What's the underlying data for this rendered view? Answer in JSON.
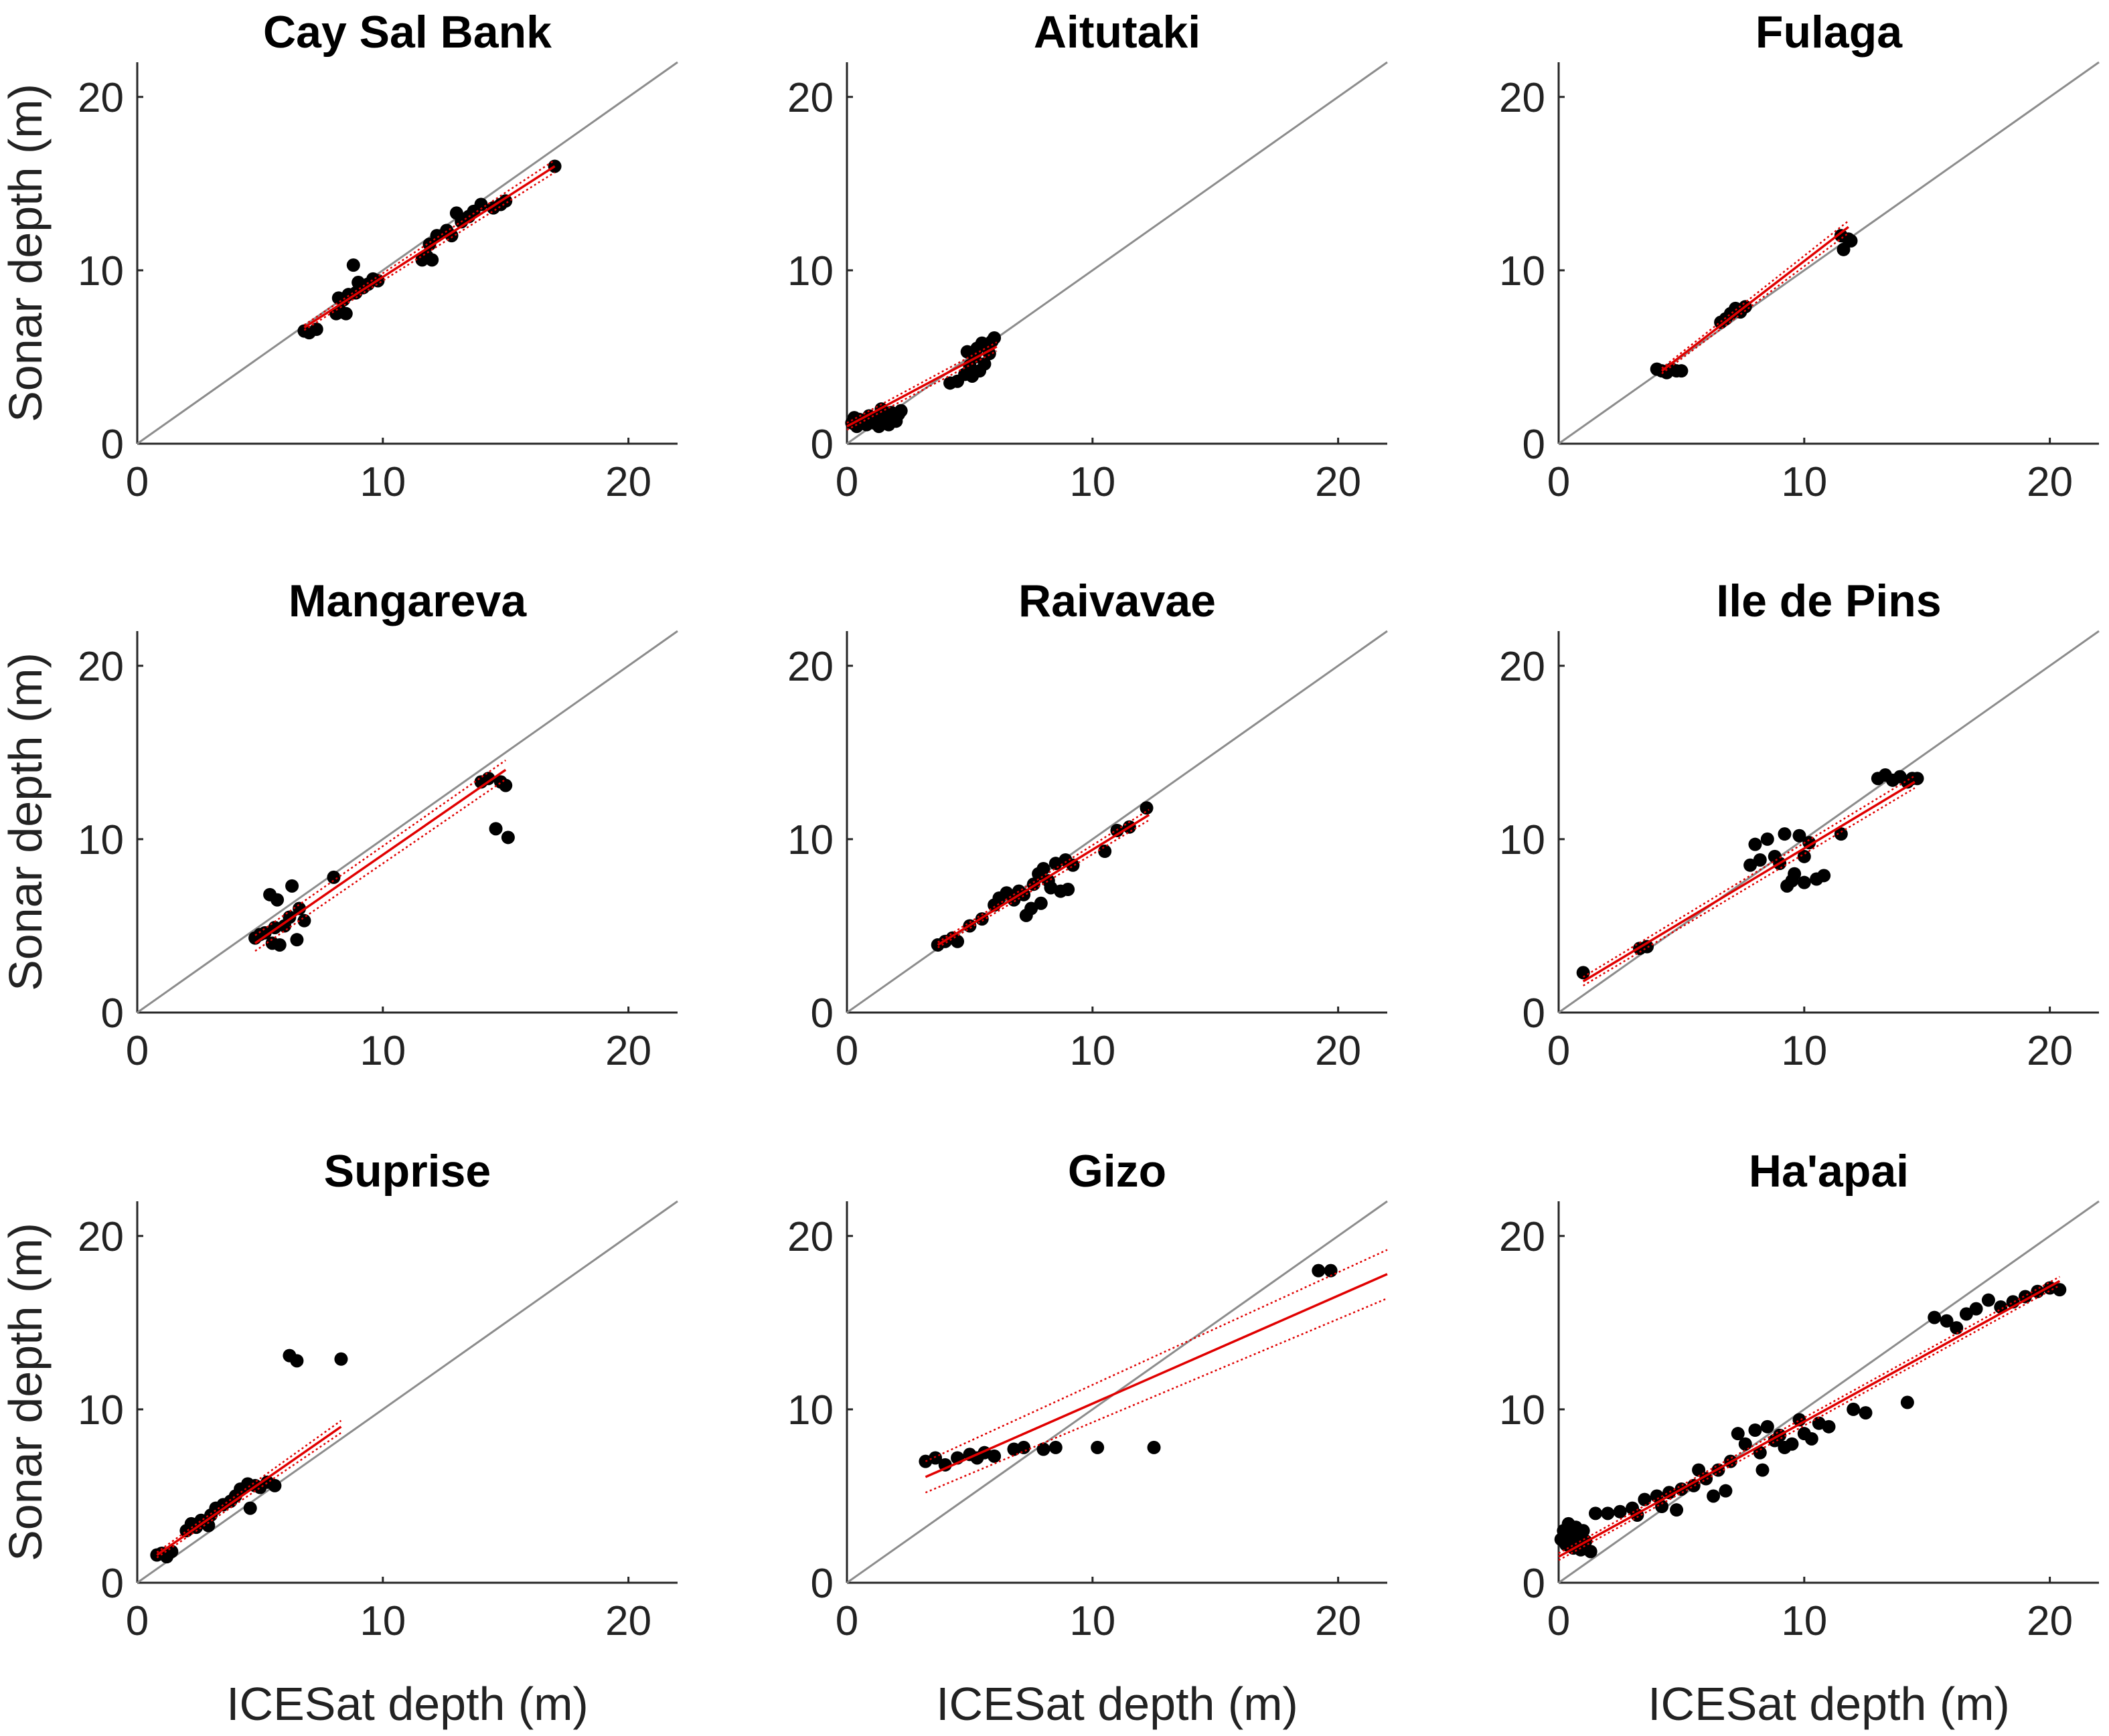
{
  "figure": {
    "xlabel": "ICESat depth (m)",
    "ylabel": "Sonar depth (m)"
  },
  "chart_data": [
    {
      "type": "scatter",
      "title": "Cay Sal Bank",
      "xlim": [
        0,
        22
      ],
      "ylim": [
        0,
        22
      ],
      "xticks": [
        0,
        10,
        20
      ],
      "yticks": [
        0,
        10,
        20
      ],
      "identity_line": true,
      "fit": {
        "x0": 6.8,
        "x1": 17.0,
        "y0": 6.7,
        "y1": 16.0,
        "band_start": 0.15,
        "band_end": 0.35
      },
      "points": [
        [
          6.8,
          6.5
        ],
        [
          7.0,
          6.4
        ],
        [
          7.3,
          6.6
        ],
        [
          8.1,
          7.5
        ],
        [
          8.3,
          7.6
        ],
        [
          8.5,
          7.5
        ],
        [
          8.2,
          8.4
        ],
        [
          8.6,
          8.6
        ],
        [
          8.9,
          8.7
        ],
        [
          9.0,
          9.3
        ],
        [
          9.2,
          9.0
        ],
        [
          9.4,
          9.2
        ],
        [
          9.6,
          9.5
        ],
        [
          9.8,
          9.4
        ],
        [
          8.8,
          10.3
        ],
        [
          8.4,
          8.3
        ],
        [
          11.6,
          10.6
        ],
        [
          11.8,
          10.8
        ],
        [
          12.0,
          10.6
        ],
        [
          11.9,
          11.5
        ],
        [
          12.2,
          12.0
        ],
        [
          12.6,
          12.3
        ],
        [
          12.8,
          12.0
        ],
        [
          13.2,
          12.8
        ],
        [
          13.5,
          13.1
        ],
        [
          13.7,
          13.4
        ],
        [
          14.0,
          13.8
        ],
        [
          14.5,
          13.6
        ],
        [
          14.8,
          13.8
        ],
        [
          15.0,
          14.0
        ],
        [
          13.0,
          13.3
        ],
        [
          17.0,
          16.0
        ]
      ]
    },
    {
      "type": "scatter",
      "title": "Aitutaki",
      "xlim": [
        0,
        22
      ],
      "ylim": [
        0,
        22
      ],
      "xticks": [
        0,
        10,
        20
      ],
      "yticks": [
        0,
        10,
        20
      ],
      "identity_line": true,
      "fit": {
        "x0": 0.0,
        "x1": 6.1,
        "y0": 1.0,
        "y1": 5.6,
        "band_start": 0.2,
        "band_end": 0.25
      },
      "points": [
        [
          0.2,
          1.2
        ],
        [
          0.4,
          1.0
        ],
        [
          0.6,
          1.3
        ],
        [
          0.8,
          1.1
        ],
        [
          1.0,
          1.5
        ],
        [
          1.1,
          1.2
        ],
        [
          1.3,
          1.0
        ],
        [
          1.5,
          1.6
        ],
        [
          1.6,
          1.4
        ],
        [
          1.8,
          1.8
        ],
        [
          2.0,
          1.3
        ],
        [
          2.1,
          1.7
        ],
        [
          1.4,
          2.0
        ],
        [
          0.9,
          1.6
        ],
        [
          0.5,
          1.4
        ],
        [
          1.7,
          1.1
        ],
        [
          2.2,
          1.9
        ],
        [
          0.3,
          1.5
        ],
        [
          4.2,
          3.5
        ],
        [
          4.5,
          3.6
        ],
        [
          4.8,
          4.0
        ],
        [
          5.0,
          4.5
        ],
        [
          5.2,
          5.0
        ],
        [
          5.3,
          5.5
        ],
        [
          5.5,
          5.8
        ],
        [
          5.6,
          4.6
        ],
        [
          5.8,
          5.2
        ],
        [
          5.9,
          5.9
        ],
        [
          6.0,
          6.1
        ],
        [
          5.4,
          4.2
        ],
        [
          5.1,
          3.9
        ],
        [
          4.9,
          5.3
        ],
        [
          5.7,
          5.6
        ]
      ]
    },
    {
      "type": "scatter",
      "title": "Fulaga",
      "xlim": [
        0,
        22
      ],
      "ylim": [
        0,
        22
      ],
      "xticks": [
        0,
        10,
        20
      ],
      "yticks": [
        0,
        10,
        20
      ],
      "identity_line": true,
      "fit": {
        "x0": 4.2,
        "x1": 11.8,
        "y0": 4.2,
        "y1": 12.5,
        "band_start": 0.15,
        "band_end": 0.35
      },
      "points": [
        [
          4.0,
          4.3
        ],
        [
          4.2,
          4.2
        ],
        [
          4.4,
          4.1
        ],
        [
          4.6,
          4.3
        ],
        [
          4.8,
          4.2
        ],
        [
          5.0,
          4.2
        ],
        [
          6.6,
          7.0
        ],
        [
          6.8,
          7.2
        ],
        [
          7.0,
          7.5
        ],
        [
          7.2,
          7.8
        ],
        [
          7.4,
          7.6
        ],
        [
          7.6,
          7.9
        ],
        [
          11.5,
          12.0
        ],
        [
          11.6,
          11.2
        ],
        [
          11.8,
          11.8
        ],
        [
          11.9,
          11.7
        ]
      ]
    },
    {
      "type": "scatter",
      "title": "Mangareva",
      "xlim": [
        0,
        22
      ],
      "ylim": [
        0,
        22
      ],
      "xticks": [
        0,
        10,
        20
      ],
      "yticks": [
        0,
        10,
        20
      ],
      "identity_line": true,
      "fit": {
        "x0": 4.8,
        "x1": 15.0,
        "y0": 4.0,
        "y1": 14.0,
        "band_start": 0.45,
        "band_end": 0.55
      },
      "points": [
        [
          4.8,
          4.3
        ],
        [
          5.0,
          4.5
        ],
        [
          5.2,
          4.6
        ],
        [
          5.5,
          4.0
        ],
        [
          5.8,
          3.9
        ],
        [
          5.4,
          6.8
        ],
        [
          5.7,
          6.5
        ],
        [
          6.0,
          5.0
        ],
        [
          6.2,
          5.5
        ],
        [
          6.3,
          7.3
        ],
        [
          6.5,
          4.2
        ],
        [
          6.6,
          6.0
        ],
        [
          6.8,
          5.3
        ],
        [
          8.0,
          7.8
        ],
        [
          5.6,
          4.9
        ],
        [
          14.0,
          13.3
        ],
        [
          14.3,
          13.5
        ],
        [
          14.6,
          10.6
        ],
        [
          14.8,
          13.3
        ],
        [
          15.0,
          13.1
        ],
        [
          15.1,
          10.1
        ]
      ]
    },
    {
      "type": "scatter",
      "title": "Raivavae",
      "xlim": [
        0,
        22
      ],
      "ylim": [
        0,
        22
      ],
      "xticks": [
        0,
        10,
        20
      ],
      "yticks": [
        0,
        10,
        20
      ],
      "identity_line": true,
      "fit": {
        "x0": 3.7,
        "x1": 12.3,
        "y0": 3.9,
        "y1": 11.4,
        "band_start": 0.15,
        "band_end": 0.3
      },
      "points": [
        [
          3.7,
          3.9
        ],
        [
          4.0,
          4.1
        ],
        [
          4.3,
          4.3
        ],
        [
          4.5,
          4.1
        ],
        [
          5.0,
          5.0
        ],
        [
          5.5,
          5.4
        ],
        [
          6.0,
          6.2
        ],
        [
          6.2,
          6.6
        ],
        [
          6.5,
          6.9
        ],
        [
          6.8,
          6.5
        ],
        [
          7.0,
          7.0
        ],
        [
          7.2,
          6.8
        ],
        [
          7.3,
          5.6
        ],
        [
          7.5,
          6.0
        ],
        [
          7.6,
          7.4
        ],
        [
          7.8,
          8.0
        ],
        [
          8.0,
          8.3
        ],
        [
          8.2,
          7.6
        ],
        [
          8.3,
          7.2
        ],
        [
          8.5,
          8.6
        ],
        [
          8.7,
          7.0
        ],
        [
          8.9,
          8.8
        ],
        [
          9.0,
          7.1
        ],
        [
          9.2,
          8.5
        ],
        [
          7.9,
          6.3
        ],
        [
          10.5,
          9.3
        ],
        [
          11.0,
          10.5
        ],
        [
          11.5,
          10.7
        ],
        [
          12.2,
          11.8
        ]
      ]
    },
    {
      "type": "scatter",
      "title": "Ile de Pins",
      "xlim": [
        0,
        22
      ],
      "ylim": [
        0,
        22
      ],
      "xticks": [
        0,
        10,
        20
      ],
      "yticks": [
        0,
        10,
        20
      ],
      "identity_line": true,
      "fit": {
        "x0": 1.0,
        "x1": 14.5,
        "y0": 1.8,
        "y1": 13.3,
        "band_start": 0.25,
        "band_end": 0.35
      },
      "points": [
        [
          1.0,
          2.3
        ],
        [
          3.3,
          3.7
        ],
        [
          3.6,
          3.8
        ],
        [
          7.8,
          8.5
        ],
        [
          8.0,
          9.7
        ],
        [
          8.2,
          8.8
        ],
        [
          8.5,
          10.0
        ],
        [
          8.8,
          9.0
        ],
        [
          9.0,
          8.6
        ],
        [
          9.2,
          10.3
        ],
        [
          9.3,
          7.3
        ],
        [
          9.5,
          7.6
        ],
        [
          9.6,
          8.0
        ],
        [
          9.8,
          10.2
        ],
        [
          10.0,
          7.5
        ],
        [
          10.2,
          9.8
        ],
        [
          10.5,
          7.7
        ],
        [
          10.8,
          7.9
        ],
        [
          10.0,
          9.0
        ],
        [
          11.5,
          10.3
        ],
        [
          13.0,
          13.5
        ],
        [
          13.3,
          13.7
        ],
        [
          13.6,
          13.4
        ],
        [
          13.9,
          13.6
        ],
        [
          14.2,
          13.3
        ],
        [
          14.4,
          13.5
        ],
        [
          14.6,
          13.5
        ]
      ]
    },
    {
      "type": "scatter",
      "title": "Suprise",
      "xlim": [
        0,
        22
      ],
      "ylim": [
        0,
        22
      ],
      "xticks": [
        0,
        10,
        20
      ],
      "yticks": [
        0,
        10,
        20
      ],
      "identity_line": true,
      "fit": {
        "x0": 0.8,
        "x1": 8.3,
        "y0": 1.6,
        "y1": 9.0,
        "band_start": 0.15,
        "band_end": 0.35
      },
      "points": [
        [
          0.8,
          1.6
        ],
        [
          1.0,
          1.7
        ],
        [
          1.2,
          1.5
        ],
        [
          1.4,
          1.8
        ],
        [
          2.0,
          3.0
        ],
        [
          2.2,
          3.4
        ],
        [
          2.4,
          3.2
        ],
        [
          2.6,
          3.6
        ],
        [
          2.8,
          3.5
        ],
        [
          3.0,
          3.9
        ],
        [
          3.2,
          4.3
        ],
        [
          3.5,
          4.5
        ],
        [
          3.8,
          4.7
        ],
        [
          4.0,
          5.0
        ],
        [
          4.2,
          5.4
        ],
        [
          4.5,
          5.7
        ],
        [
          4.8,
          5.6
        ],
        [
          5.0,
          5.5
        ],
        [
          5.3,
          5.8
        ],
        [
          5.6,
          5.6
        ],
        [
          4.6,
          4.3
        ],
        [
          2.9,
          3.3
        ],
        [
          6.2,
          13.1
        ],
        [
          6.5,
          12.8
        ],
        [
          8.3,
          12.9
        ]
      ]
    },
    {
      "type": "scatter",
      "title": "Gizo",
      "xlim": [
        0,
        22
      ],
      "ylim": [
        0,
        22
      ],
      "xticks": [
        0,
        10,
        20
      ],
      "yticks": [
        0,
        10,
        20
      ],
      "identity_line": true,
      "fit": {
        "x0": 3.2,
        "x1": 22.0,
        "y0": 6.1,
        "y1": 17.8,
        "band_start": 0.9,
        "band_end": 1.4
      },
      "points": [
        [
          3.2,
          7.0
        ],
        [
          3.6,
          7.2
        ],
        [
          4.0,
          6.8
        ],
        [
          4.5,
          7.2
        ],
        [
          5.0,
          7.4
        ],
        [
          5.3,
          7.2
        ],
        [
          5.6,
          7.5
        ],
        [
          6.0,
          7.3
        ],
        [
          6.8,
          7.7
        ],
        [
          7.2,
          7.8
        ],
        [
          8.0,
          7.7
        ],
        [
          8.5,
          7.8
        ],
        [
          10.2,
          7.8
        ],
        [
          12.5,
          7.8
        ],
        [
          19.2,
          18.0
        ],
        [
          19.7,
          18.0
        ]
      ]
    },
    {
      "type": "scatter",
      "title": "Ha'apai",
      "xlim": [
        0,
        22
      ],
      "ylim": [
        0,
        22
      ],
      "xticks": [
        0,
        10,
        20
      ],
      "yticks": [
        0,
        10,
        20
      ],
      "identity_line": true,
      "fit": {
        "x0": 0.0,
        "x1": 20.4,
        "y0": 1.5,
        "y1": 17.4,
        "band_start": 0.2,
        "band_end": 0.25
      },
      "points": [
        [
          0.1,
          2.5
        ],
        [
          0.2,
          3.0
        ],
        [
          0.3,
          2.2
        ],
        [
          0.4,
          3.4
        ],
        [
          0.5,
          2.7
        ],
        [
          0.6,
          2.0
        ],
        [
          0.7,
          3.2
        ],
        [
          0.8,
          2.6
        ],
        [
          0.9,
          1.9
        ],
        [
          1.0,
          3.0
        ],
        [
          1.1,
          2.4
        ],
        [
          1.3,
          1.8
        ],
        [
          1.5,
          4.0
        ],
        [
          2.0,
          4.0
        ],
        [
          2.5,
          4.1
        ],
        [
          3.0,
          4.3
        ],
        [
          3.5,
          4.8
        ],
        [
          4.0,
          5.0
        ],
        [
          4.2,
          4.4
        ],
        [
          4.5,
          5.2
        ],
        [
          4.8,
          4.2
        ],
        [
          5.0,
          5.4
        ],
        [
          5.5,
          5.6
        ],
        [
          6.0,
          6.0
        ],
        [
          6.5,
          6.5
        ],
        [
          6.8,
          5.3
        ],
        [
          7.0,
          7.0
        ],
        [
          7.3,
          8.6
        ],
        [
          7.6,
          8.0
        ],
        [
          8.0,
          8.8
        ],
        [
          8.2,
          7.5
        ],
        [
          8.5,
          9.0
        ],
        [
          8.8,
          8.2
        ],
        [
          9.0,
          8.5
        ],
        [
          9.2,
          7.8
        ],
        [
          9.5,
          8.0
        ],
        [
          9.8,
          9.4
        ],
        [
          10.0,
          8.6
        ],
        [
          10.3,
          8.3
        ],
        [
          10.6,
          9.2
        ],
        [
          11.0,
          9.0
        ],
        [
          12.0,
          10.0
        ],
        [
          12.5,
          9.8
        ],
        [
          14.2,
          10.4
        ],
        [
          15.3,
          15.3
        ],
        [
          15.8,
          15.1
        ],
        [
          16.2,
          14.7
        ],
        [
          16.6,
          15.5
        ],
        [
          17.0,
          15.8
        ],
        [
          17.5,
          16.3
        ],
        [
          18.0,
          15.9
        ],
        [
          18.5,
          16.2
        ],
        [
          19.0,
          16.5
        ],
        [
          19.5,
          16.8
        ],
        [
          20.0,
          17.0
        ],
        [
          20.4,
          16.9
        ],
        [
          8.3,
          6.5
        ],
        [
          6.3,
          5.0
        ],
        [
          3.2,
          3.9
        ],
        [
          5.7,
          6.5
        ]
      ]
    }
  ]
}
